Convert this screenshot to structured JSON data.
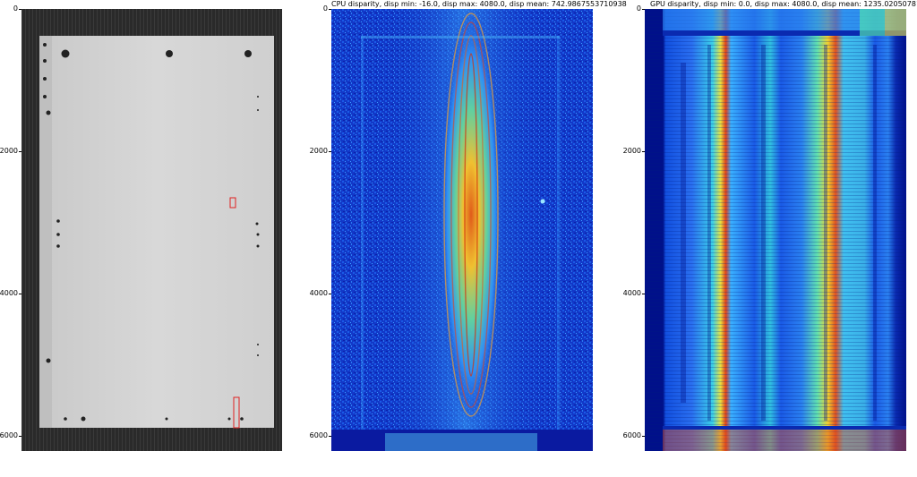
{
  "panels": [
    {
      "title": "",
      "style": "grayscale",
      "yticks": [
        "0",
        "2000",
        "4000",
        "6000"
      ],
      "annotations": [
        "red-box-small",
        "red-box-tall"
      ]
    },
    {
      "title": "CPU disparity, disp min: -16.0, disp max: 4080.0, disp mean: 742.9867553710938",
      "style": "jet",
      "yticks": [
        "0",
        "2000",
        "4000",
        "6000"
      ]
    },
    {
      "title": "GPU disparity, disp min: 0.0, disp max: 4080.0, disp mean: 1235.0205078125",
      "style": "jet",
      "yticks": [
        "0",
        "2000",
        "4000",
        "6000"
      ]
    }
  ],
  "chart_data": [
    {
      "type": "heatmap",
      "title": "",
      "colormap": "gray",
      "ylim": [
        6200,
        0
      ],
      "yticks": [
        0,
        2000,
        4000,
        6000
      ]
    },
    {
      "type": "heatmap",
      "title": "CPU disparity, disp min: -16.0, disp max: 4080.0, disp mean: 742.9867553710938",
      "colormap": "jet",
      "disp_min": -16.0,
      "disp_max": 4080.0,
      "disp_mean": 742.9867553710938,
      "ylim": [
        6200,
        0
      ],
      "yticks": [
        0,
        2000,
        4000,
        6000
      ]
    },
    {
      "type": "heatmap",
      "title": "GPU disparity, disp min: 0.0, disp max: 4080.0, disp mean: 1235.0205078125",
      "colormap": "jet",
      "disp_min": 0.0,
      "disp_max": 4080.0,
      "disp_mean": 1235.0205078125,
      "ylim": [
        6200,
        0
      ],
      "yticks": [
        0,
        2000,
        4000,
        6000
      ]
    }
  ]
}
